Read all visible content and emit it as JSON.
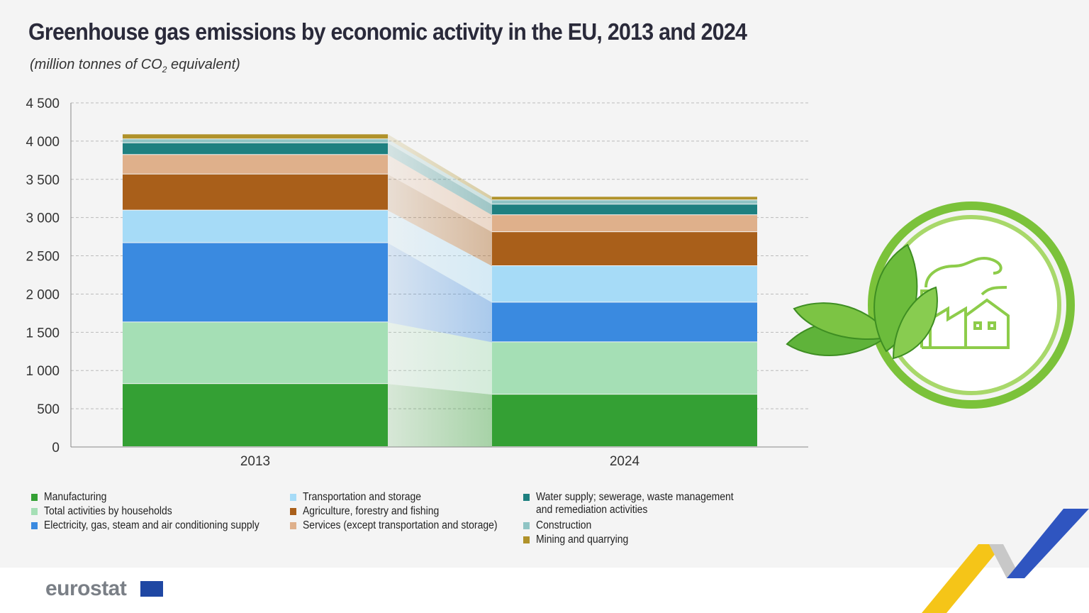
{
  "title": "Greenhouse gas emissions by economic activity in the EU, 2013 and 2024",
  "subtitle_main": "(million tonnes of CO",
  "subtitle_sub": "2",
  "subtitle_end": " equivalent)",
  "brand": "eurostat",
  "chart_data": {
    "type": "bar",
    "stacked": true,
    "categories": [
      "2013",
      "2024"
    ],
    "ylim": [
      0,
      4500
    ],
    "yticks": [
      "0",
      "500",
      "1 000",
      "1 500",
      "2 000",
      "2 500",
      "3 000",
      "3 500",
      "4 000",
      "4 500"
    ],
    "ytick_values": [
      0,
      500,
      1000,
      1500,
      2000,
      2500,
      3000,
      3500,
      4000,
      4500
    ],
    "grid": true,
    "legend_position": "bottom",
    "series": [
      {
        "name": "Manufacturing",
        "color": "#34a034",
        "values": [
          824,
          685
        ]
      },
      {
        "name": "Total activities by households",
        "color": "#a5dfb5",
        "values": [
          806,
          685
        ]
      },
      {
        "name": "Electricity, gas, steam and air conditioning supply",
        "color": "#3a8ae0",
        "values": [
          1037,
          519
        ]
      },
      {
        "name": "Transportation and storage",
        "color": "#a6dbf7",
        "values": [
          426,
          477
        ]
      },
      {
        "name": "Agriculture, forestry and fishing",
        "color": "#a95f1a",
        "values": [
          472,
          444
        ]
      },
      {
        "name": "Services (except transportation and storage)",
        "color": "#dfb08b",
        "values": [
          255,
          222
        ]
      },
      {
        "name": "Water supply; sewerage, waste management and remediation activities",
        "color": "#1e8080",
        "values": [
          153,
          139
        ]
      },
      {
        "name": "Construction",
        "color": "#8fc4c4",
        "values": [
          51,
          55
        ]
      },
      {
        "name": "Mining and quarrying",
        "color": "#b0922a",
        "values": [
          65,
          46
        ]
      }
    ]
  },
  "legend_columns": [
    [
      0,
      1,
      2
    ],
    [
      3,
      4,
      5
    ],
    [
      6,
      7,
      8
    ]
  ],
  "legend_lines": {
    "6": [
      "Water supply; sewerage, waste management",
      "and remediation activities"
    ]
  }
}
